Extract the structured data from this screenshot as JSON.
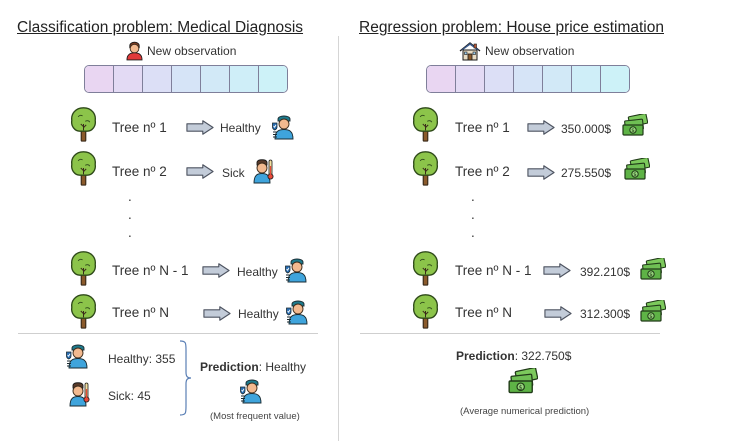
{
  "left": {
    "title_bold": "Classification problem",
    "title_rest": ": Medical Diagnosis",
    "new_observation": "New observation",
    "trees": [
      {
        "label": "Tree nº 1",
        "result": "Healthy"
      },
      {
        "label": "Tree nº 2",
        "result": "Sick"
      },
      {
        "label": "Tree nº N - 1",
        "result": "Healthy"
      },
      {
        "label": "Tree nº N",
        "result": "Healthy"
      }
    ],
    "dots": ".",
    "votes": [
      {
        "label": "Healthy: 355"
      },
      {
        "label": "Sick: 45"
      }
    ],
    "prediction_bold": "Prediction",
    "prediction_rest": ": Healthy",
    "note": "(Most frequent value)"
  },
  "right": {
    "title_bold": "Regression problem",
    "title_rest": ": House price estimation",
    "new_observation": "New observation",
    "trees": [
      {
        "label": "Tree nº 1",
        "result": "350.000$"
      },
      {
        "label": "Tree nº 2",
        "result": "275.550$"
      },
      {
        "label": "Tree nº N - 1",
        "result": "392.210$"
      },
      {
        "label": "Tree nº N",
        "result": "312.300$"
      }
    ],
    "dots": ".",
    "prediction_bold": "Prediction",
    "prediction_rest": ": 322.750$",
    "note": "(Average numerical prediction)"
  },
  "colors": {
    "tree_leaf": "#8cc44a",
    "tree_trunk": "#8b5a2b",
    "arrow": "#c3ccd9",
    "feature_cells": [
      "#e9d6f2",
      "#e3daf4",
      "#dcdff6",
      "#d6e4f7",
      "#d2e9f7",
      "#cfeef8",
      "#cdf2f8"
    ],
    "money": "#6fbf54",
    "skin": "#f2b98f",
    "shirt": "#3fa4dc"
  },
  "icons": {
    "tree": "tree-icon",
    "arrow": "arrow-right-icon",
    "healthy": "doctor-healthy-icon",
    "sick": "patient-thermometer-icon",
    "money": "money-stack-icon",
    "person": "person-icon",
    "house": "house-icon"
  }
}
